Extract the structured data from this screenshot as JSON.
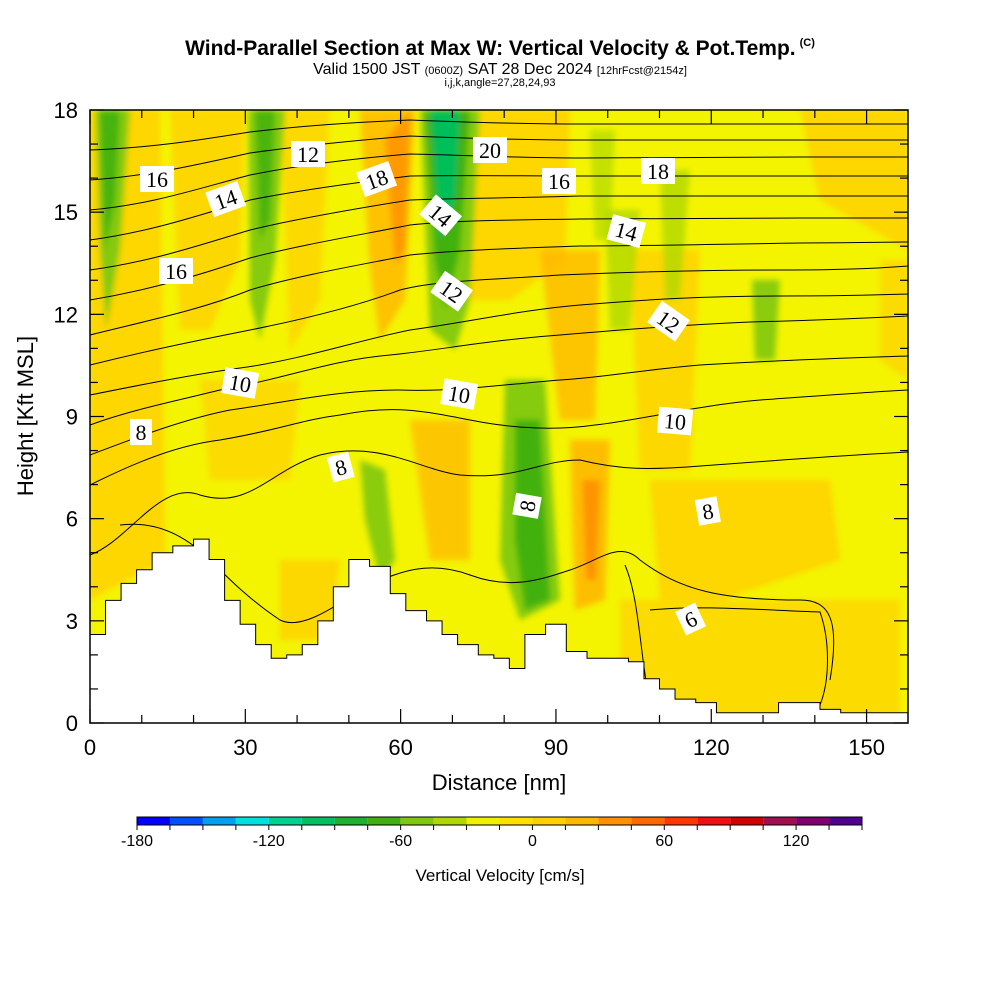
{
  "title": {
    "main": "Wind-Parallel Section at Max W: Vertical Velocity & Pot.Temp.",
    "copyright": "(C)",
    "valid_prefix": "Valid 1500 JST",
    "utc": "(0600Z)",
    "valid_date": "SAT 28 Dec 2024",
    "forecast": "[12hrFcst@2154z]",
    "indices": "i,j,k,angle=27,28,24,93"
  },
  "chart_data": {
    "type": "heatmap",
    "xlabel": "Distance [nm]",
    "ylabel": "Height [Kft MSL]",
    "xlim": [
      0,
      158
    ],
    "ylim": [
      0,
      18
    ],
    "x_ticks": [
      0,
      30,
      60,
      90,
      120,
      150
    ],
    "y_ticks": [
      0,
      3,
      6,
      9,
      12,
      15,
      18
    ],
    "colorbar": {
      "label": "Vertical Velocity [cm/s]",
      "tick_labels": [
        -180,
        -120,
        -60,
        0,
        60,
        120
      ],
      "levels": [
        -180,
        -165,
        -150,
        -135,
        -120,
        -105,
        -90,
        -75,
        -60,
        -45,
        -30,
        -15,
        0,
        15,
        30,
        45,
        60,
        75,
        90,
        105,
        120,
        135,
        150
      ],
      "colors": [
        "#0000ff",
        "#0050ff",
        "#00a0f0",
        "#00e0e0",
        "#00d090",
        "#00c060",
        "#20b030",
        "#40b010",
        "#80c810",
        "#b0d800",
        "#f0f000",
        "#ffe000",
        "#ffd000",
        "#ffb800",
        "#ff9000",
        "#ff6800",
        "#ff3800",
        "#f01010",
        "#d00000",
        "#a01050",
        "#800070",
        "#500090"
      ]
    },
    "theta_contour_labels": [
      "16",
      "14",
      "12",
      "18",
      "16",
      "20",
      "14",
      "12",
      "16",
      "18",
      "14",
      "12",
      "10",
      "10",
      "10",
      "8",
      "8",
      "8",
      "8",
      "6"
    ],
    "terrain_kft": [
      [
        0,
        2.6
      ],
      [
        3,
        3.6
      ],
      [
        6,
        4.1
      ],
      [
        9,
        4.5
      ],
      [
        12,
        5.0
      ],
      [
        16,
        5.2
      ],
      [
        20,
        5.4
      ],
      [
        23,
        4.8
      ],
      [
        26,
        3.6
      ],
      [
        29,
        2.9
      ],
      [
        32,
        2.3
      ],
      [
        35,
        1.9
      ],
      [
        38,
        2.0
      ],
      [
        41,
        2.3
      ],
      [
        44,
        3.0
      ],
      [
        47,
        4.0
      ],
      [
        50,
        4.8
      ],
      [
        54,
        4.6
      ],
      [
        58,
        3.8
      ],
      [
        61,
        3.3
      ],
      [
        65,
        3.0
      ],
      [
        68,
        2.6
      ],
      [
        71,
        2.3
      ],
      [
        75,
        2.0
      ],
      [
        78,
        1.9
      ],
      [
        81,
        1.6
      ],
      [
        84,
        2.6
      ],
      [
        88,
        2.9
      ],
      [
        92,
        2.1
      ],
      [
        96,
        1.9
      ],
      [
        100,
        1.9
      ],
      [
        104,
        1.8
      ],
      [
        107,
        1.3
      ],
      [
        110,
        1.0
      ],
      [
        113,
        0.7
      ],
      [
        117,
        0.6
      ],
      [
        121,
        0.3
      ],
      [
        125,
        0.3
      ],
      [
        129,
        0.3
      ],
      [
        133,
        0.6
      ],
      [
        137,
        0.6
      ],
      [
        141,
        0.4
      ],
      [
        145,
        0.3
      ],
      [
        150,
        0.3
      ],
      [
        158,
        0.3
      ]
    ]
  }
}
